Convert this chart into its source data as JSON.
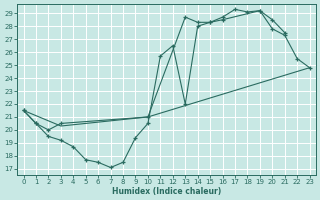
{
  "bg_color": "#c8e8e4",
  "grid_color": "#ffffff",
  "line_color": "#2a6b60",
  "xlabel": "Humidex (Indice chaleur)",
  "xlim": [
    -0.5,
    23.5
  ],
  "ylim": [
    16.5,
    29.7
  ],
  "yticks": [
    17,
    18,
    19,
    20,
    21,
    22,
    23,
    24,
    25,
    26,
    27,
    28,
    29
  ],
  "xticks": [
    0,
    1,
    2,
    3,
    4,
    5,
    6,
    7,
    8,
    9,
    10,
    11,
    12,
    13,
    14,
    15,
    16,
    17,
    18,
    19,
    20,
    21,
    22,
    23
  ],
  "line1_x": [
    0,
    1,
    2,
    3,
    4,
    5,
    6,
    7,
    8,
    9,
    10,
    11,
    12,
    13,
    14,
    15,
    16,
    19,
    20,
    21
  ],
  "line1_y": [
    21.5,
    20.5,
    19.5,
    19.2,
    18.7,
    17.7,
    17.5,
    17.1,
    17.5,
    19.4,
    20.5,
    25.7,
    26.5,
    22.0,
    28.0,
    28.3,
    28.5,
    29.2,
    28.5,
    27.5
  ],
  "line2_x": [
    0,
    1,
    2,
    3,
    10,
    13,
    14,
    15,
    16,
    17,
    18,
    19,
    20,
    21,
    22,
    23
  ],
  "line2_y": [
    21.5,
    20.5,
    20.0,
    20.5,
    21.0,
    28.7,
    28.3,
    28.3,
    28.7,
    29.3,
    29.1,
    29.2,
    27.8,
    27.3,
    25.5,
    24.8
  ],
  "line3_x": [
    0,
    3,
    10,
    23
  ],
  "line3_y": [
    21.5,
    20.3,
    21.0,
    24.8
  ]
}
